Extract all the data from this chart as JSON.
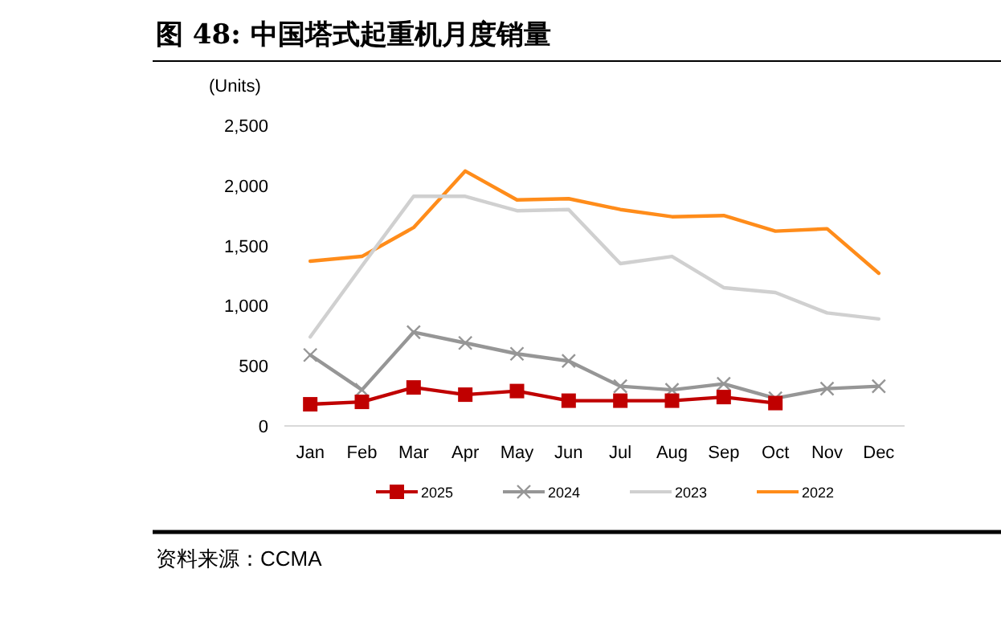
{
  "chart_data": {
    "type": "line",
    "title": "图 48: 中国塔式起重机月度销量",
    "ylabel": "(Units)",
    "categories": [
      "Jan",
      "Feb",
      "Mar",
      "Apr",
      "May",
      "Jun",
      "Jul",
      "Aug",
      "Sep",
      "Oct",
      "Nov",
      "Dec"
    ],
    "series": [
      {
        "name": "2025",
        "color": "#c00000",
        "marker": "square",
        "values": [
          180,
          200,
          320,
          260,
          290,
          210,
          210,
          210,
          240,
          190,
          null,
          null
        ]
      },
      {
        "name": "2024",
        "color": "#969696",
        "marker": "cross",
        "values": [
          590,
          300,
          780,
          690,
          600,
          540,
          330,
          300,
          350,
          230,
          310,
          330
        ]
      },
      {
        "name": "2023",
        "color": "#d0d0d0",
        "marker": "none",
        "values": [
          740,
          1330,
          1910,
          1910,
          1790,
          1800,
          1350,
          1410,
          1150,
          1110,
          940,
          890
        ]
      },
      {
        "name": "2022",
        "color": "#ff8c1a",
        "marker": "none",
        "values": [
          1370,
          1410,
          1650,
          2120,
          1880,
          1890,
          1800,
          1740,
          1750,
          1620,
          1640,
          1270
        ]
      }
    ],
    "ylim": [
      0,
      2500
    ],
    "yticks": [
      {
        "value": 0,
        "label": "0"
      },
      {
        "value": 500,
        "label": "500"
      },
      {
        "value": 1000,
        "label": "1,000"
      },
      {
        "value": 1500,
        "label": "1,500"
      },
      {
        "value": 2000,
        "label": "2,000"
      },
      {
        "value": 2500,
        "label": "2,500"
      }
    ],
    "grid": false,
    "legend": "bottom",
    "line_style": "solid",
    "annotations": [
      "资料来源：CCMA"
    ]
  }
}
